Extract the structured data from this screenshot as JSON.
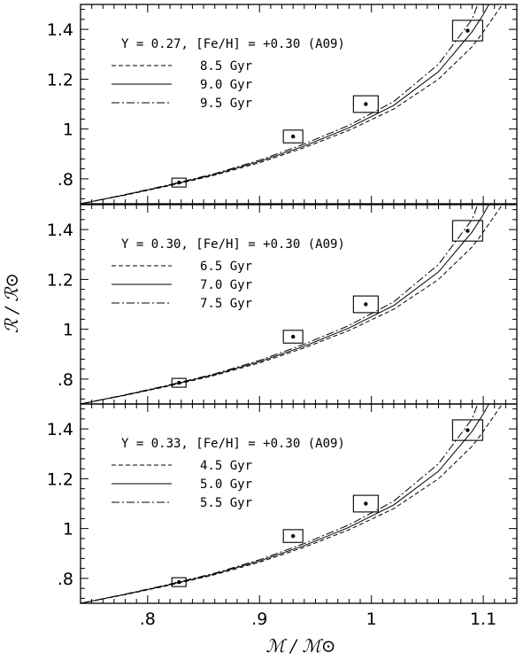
{
  "figure": {
    "ylabel": "ℛ / ℛ⊙",
    "xlabel": "ℳ / ℳ⊙"
  },
  "chart_data": [
    {
      "type": "line",
      "title": "Y = 0.27, [Fe/H] = +0.30 (A09)",
      "xlim": [
        0.74,
        1.13
      ],
      "ylim": [
        0.7,
        1.5
      ],
      "x_ticks": [
        ".8",
        ".9",
        "1",
        "1.1"
      ],
      "y_ticks": [
        ".8",
        "1",
        "1.2",
        "1.4"
      ],
      "y_tick_values": [
        0.8,
        1.0,
        1.2,
        1.4
      ],
      "series": [
        {
          "name": "8.5 Gyr",
          "style": "dashed",
          "x": [
            0.74,
            0.78,
            0.82,
            0.86,
            0.9,
            0.94,
            0.98,
            1.02,
            1.06,
            1.09,
            1.1,
            1.117
          ],
          "y": [
            0.7,
            0.735,
            0.773,
            0.815,
            0.865,
            0.925,
            0.995,
            1.08,
            1.2,
            1.33,
            1.39,
            1.5
          ]
        },
        {
          "name": "9.0 Gyr",
          "style": "solid",
          "x": [
            0.74,
            0.78,
            0.82,
            0.86,
            0.9,
            0.94,
            0.98,
            1.02,
            1.06,
            1.09,
            1.1,
            1.105
          ],
          "y": [
            0.7,
            0.736,
            0.775,
            0.818,
            0.87,
            0.932,
            1.005,
            1.095,
            1.23,
            1.39,
            1.46,
            1.5
          ]
        },
        {
          "name": "9.5 Gyr",
          "style": "dashdot",
          "x": [
            0.74,
            0.78,
            0.82,
            0.86,
            0.9,
            0.94,
            0.98,
            1.02,
            1.06,
            1.09,
            1.095
          ],
          "y": [
            0.7,
            0.737,
            0.777,
            0.821,
            0.875,
            0.94,
            1.015,
            1.11,
            1.26,
            1.44,
            1.5
          ]
        }
      ],
      "observations": [
        {
          "mass": 0.828,
          "radius": 0.785
        },
        {
          "mass": 0.93,
          "radius": 0.97
        },
        {
          "mass": 0.995,
          "radius": 1.1
        },
        {
          "mass": 1.086,
          "radius": 1.395
        }
      ]
    },
    {
      "type": "line",
      "title": "Y = 0.30, [Fe/H] = +0.30 (A09)",
      "xlim": [
        0.74,
        1.13
      ],
      "ylim": [
        0.7,
        1.5
      ],
      "x_ticks": [
        ".8",
        ".9",
        "1",
        "1.1"
      ],
      "y_ticks": [
        ".8",
        "1",
        "1.2",
        "1.4"
      ],
      "y_tick_values": [
        0.8,
        1.0,
        1.2,
        1.4
      ],
      "series": [
        {
          "name": "6.5 Gyr",
          "style": "dashed",
          "x": [
            0.74,
            0.78,
            0.82,
            0.86,
            0.9,
            0.94,
            0.98,
            1.02,
            1.06,
            1.09,
            1.1,
            1.117
          ],
          "y": [
            0.7,
            0.735,
            0.773,
            0.815,
            0.865,
            0.925,
            0.995,
            1.08,
            1.2,
            1.33,
            1.39,
            1.5
          ]
        },
        {
          "name": "7.0 Gyr",
          "style": "solid",
          "x": [
            0.74,
            0.78,
            0.82,
            0.86,
            0.9,
            0.94,
            0.98,
            1.02,
            1.06,
            1.09,
            1.1,
            1.105
          ],
          "y": [
            0.7,
            0.736,
            0.775,
            0.818,
            0.87,
            0.932,
            1.005,
            1.095,
            1.23,
            1.39,
            1.46,
            1.5
          ]
        },
        {
          "name": "7.5 Gyr",
          "style": "dashdot",
          "x": [
            0.74,
            0.78,
            0.82,
            0.86,
            0.9,
            0.94,
            0.98,
            1.02,
            1.06,
            1.09,
            1.095
          ],
          "y": [
            0.7,
            0.737,
            0.777,
            0.821,
            0.875,
            0.94,
            1.015,
            1.11,
            1.26,
            1.44,
            1.5
          ]
        }
      ],
      "observations": [
        {
          "mass": 0.828,
          "radius": 0.785
        },
        {
          "mass": 0.93,
          "radius": 0.97
        },
        {
          "mass": 0.995,
          "radius": 1.1
        },
        {
          "mass": 1.086,
          "radius": 1.395
        }
      ]
    },
    {
      "type": "line",
      "title": "Y = 0.33, [Fe/H] = +0.30 (A09)",
      "xlim": [
        0.74,
        1.13
      ],
      "ylim": [
        0.7,
        1.5
      ],
      "x_ticks": [
        ".8",
        ".9",
        "1",
        "1.1"
      ],
      "y_ticks": [
        ".8",
        "1",
        "1.2",
        "1.4"
      ],
      "y_tick_values": [
        0.8,
        1.0,
        1.2,
        1.4
      ],
      "series": [
        {
          "name": "4.5 Gyr",
          "style": "dashed",
          "x": [
            0.74,
            0.78,
            0.82,
            0.86,
            0.9,
            0.94,
            0.98,
            1.02,
            1.06,
            1.09,
            1.1,
            1.117
          ],
          "y": [
            0.7,
            0.735,
            0.773,
            0.815,
            0.865,
            0.925,
            0.995,
            1.08,
            1.2,
            1.33,
            1.39,
            1.5
          ]
        },
        {
          "name": "5.0 Gyr",
          "style": "solid",
          "x": [
            0.74,
            0.78,
            0.82,
            0.86,
            0.9,
            0.94,
            0.98,
            1.02,
            1.06,
            1.09,
            1.1,
            1.105
          ],
          "y": [
            0.7,
            0.736,
            0.775,
            0.818,
            0.87,
            0.932,
            1.005,
            1.095,
            1.23,
            1.39,
            1.46,
            1.5
          ]
        },
        {
          "name": "5.5 Gyr",
          "style": "dashdot",
          "x": [
            0.74,
            0.78,
            0.82,
            0.86,
            0.9,
            0.94,
            0.98,
            1.02,
            1.06,
            1.09,
            1.095
          ],
          "y": [
            0.7,
            0.737,
            0.777,
            0.821,
            0.875,
            0.94,
            1.015,
            1.11,
            1.26,
            1.44,
            1.5
          ]
        }
      ],
      "observations": [
        {
          "mass": 0.828,
          "radius": 0.785
        },
        {
          "mass": 0.93,
          "radius": 0.97
        },
        {
          "mass": 0.995,
          "radius": 1.1
        },
        {
          "mass": 1.086,
          "radius": 1.395
        }
      ]
    }
  ]
}
